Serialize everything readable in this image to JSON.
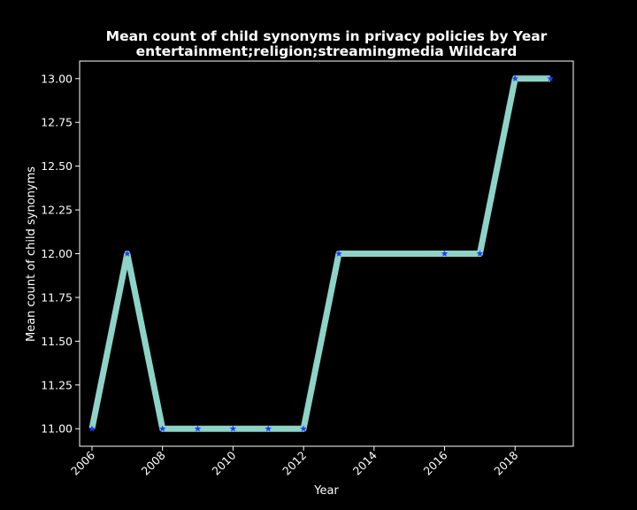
{
  "chart_data": {
    "type": "line",
    "title": "Mean count of child synonyms in privacy policies by Year",
    "subtitle": "entertainment;religion;streamingmedia Wildcard",
    "xlabel": "Year",
    "ylabel": "Mean count of child synonyms",
    "xlim": [
      2005.65,
      2019.65
    ],
    "ylim": [
      10.9,
      13.1
    ],
    "x_ticks": [
      "2006",
      "2008",
      "2010",
      "2012",
      "2014",
      "2016",
      "2018"
    ],
    "y_ticks": [
      "11.00",
      "11.25",
      "11.50",
      "11.75",
      "12.00",
      "12.25",
      "12.50",
      "12.75",
      "13.00"
    ],
    "grid": false,
    "background_color": "#000000",
    "line_color": "#8dd3c7",
    "marker_color": "#1f3bff",
    "marker": "star",
    "series": [
      {
        "x": [
          2006,
          2007,
          2008,
          2009,
          2010,
          2011,
          2012,
          2013,
          2016,
          2017,
          2018,
          2019
        ],
        "values": [
          11.0,
          12.0,
          11.0,
          11.0,
          11.0,
          11.0,
          11.0,
          12.0,
          12.0,
          12.0,
          13.0,
          13.0
        ]
      }
    ]
  }
}
